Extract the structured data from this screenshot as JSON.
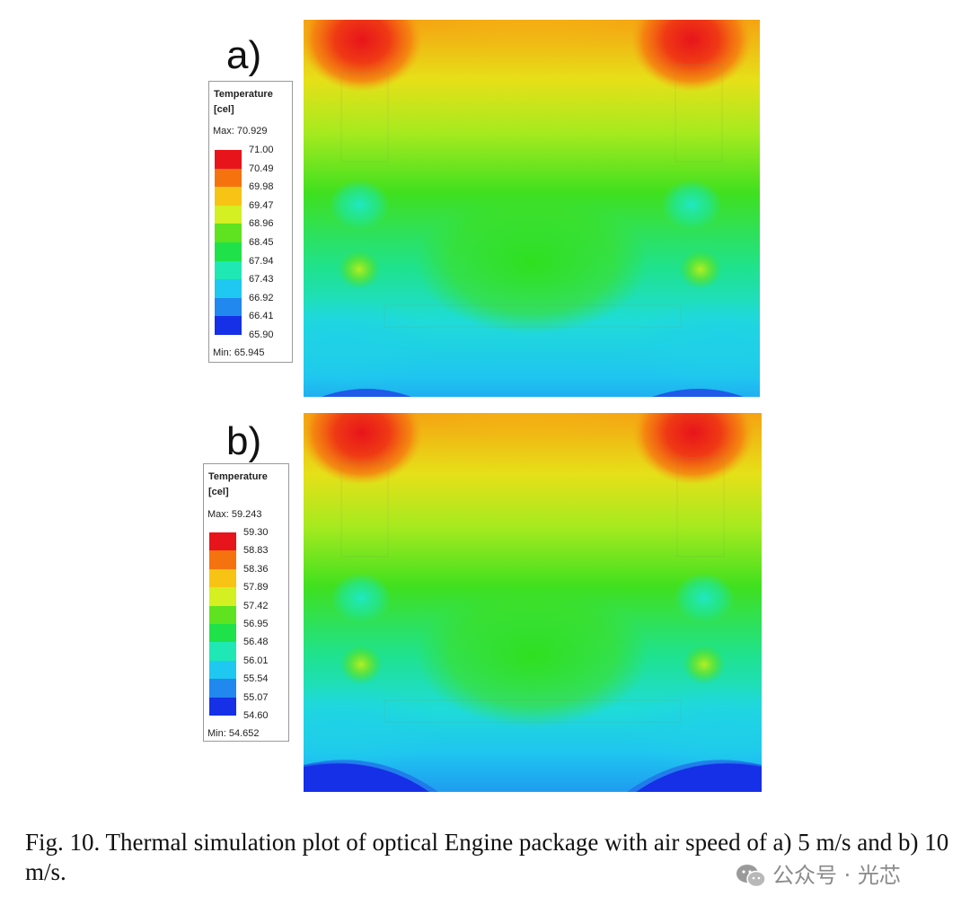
{
  "figure": {
    "panel_a": {
      "label": "a)",
      "legend": {
        "title_line1": "Temperature",
        "title_line2": "[cel]",
        "max_text": "Max: 70.929",
        "min_text": "Min: 65.945",
        "ticks": [
          "71.00",
          "70.49",
          "69.98",
          "69.47",
          "68.96",
          "68.45",
          "67.94",
          "67.43",
          "66.92",
          "66.41",
          "65.90"
        ]
      }
    },
    "panel_b": {
      "label": "b)",
      "legend": {
        "title_line1": "Temperature",
        "title_line2": "[cel]",
        "max_text": "Max: 59.243",
        "min_text": "Min: 54.652",
        "ticks": [
          "59.30",
          "58.83",
          "58.36",
          "57.89",
          "57.42",
          "56.95",
          "56.48",
          "56.01",
          "55.54",
          "55.07",
          "54.60"
        ]
      }
    },
    "colorscale": [
      "#e8141b",
      "#f5730f",
      "#f7c314",
      "#d4ef22",
      "#5fe21f",
      "#1fe24a",
      "#1fe8b4",
      "#1fc8f0",
      "#2088ee",
      "#1530e6"
    ],
    "caption": "Fig. 10. Thermal simulation plot of optical Engine package with air speed of a) 5 m/s and b) 10 m/s.",
    "watermark": "公众号 · 光芯"
  }
}
